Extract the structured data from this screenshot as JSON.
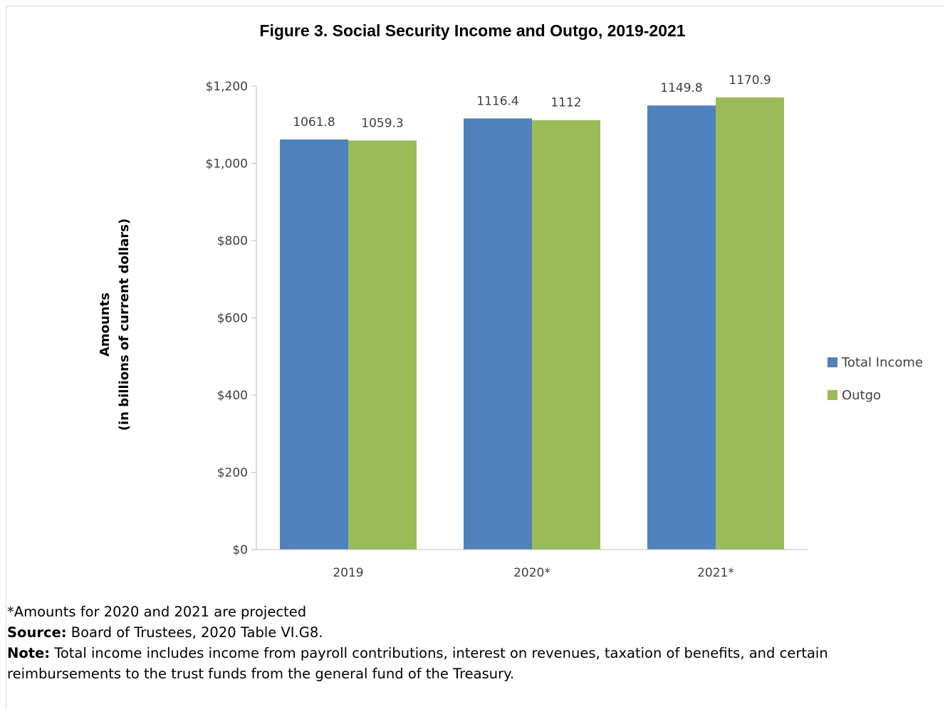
{
  "chart_data": {
    "type": "bar",
    "title": "Figure 3. Social Security Income and Outgo, 2019-2021",
    "ylabel_line1": "Amounts",
    "ylabel_line2": "(in billions of current dollars)",
    "xlabel": "",
    "categories": [
      "2019",
      "2020*",
      "2021*"
    ],
    "series": [
      {
        "name": "Total Income",
        "color": "#4f81bd",
        "values": [
          1061.8,
          1116.4,
          1149.8
        ],
        "labels": [
          "1061.8",
          "1116.4",
          "1149.8"
        ]
      },
      {
        "name": "Outgo",
        "color": "#9bbb59",
        "values": [
          1059.3,
          1112,
          1170.9
        ],
        "labels": [
          "1059.3",
          "1112",
          "1170.9"
        ]
      }
    ],
    "ylim": [
      0,
      1200
    ],
    "yticks": [
      0,
      200,
      400,
      600,
      800,
      1000,
      1200
    ],
    "ytick_labels": [
      "$0",
      "$200",
      "$400",
      "$600",
      "$800",
      "$1,000",
      "$1,200"
    ],
    "grid": false,
    "legend_position": "right"
  },
  "notes": {
    "projected": "*Amounts for 2020 and 2021 are projected",
    "source_label": "Source:",
    "source_text": " Board of Trustees, 2020 Table VI.G8.",
    "note_label": "Note:",
    "note_text": " Total income includes income from payroll contributions, interest on revenues, taxation of benefits, and certain reimbursements to the trust funds from the general fund of the Treasury."
  }
}
